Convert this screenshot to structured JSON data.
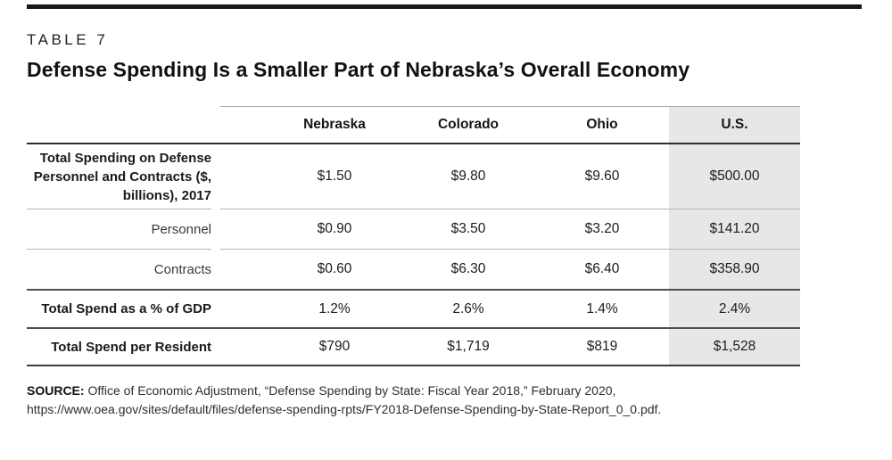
{
  "header": {
    "table_label": "TABLE 7",
    "title": "Defense Spending Is a Smaller Part of Nebraska’s Overall Economy"
  },
  "table": {
    "columns": [
      "Nebraska",
      "Colorado",
      "Ohio",
      "U.S."
    ],
    "rows": [
      {
        "label": "Total Spending on Defense Personnel and Contracts ($, billions), 2017",
        "values": [
          "$1.50",
          "$9.80",
          "$9.60",
          "$500.00"
        ]
      },
      {
        "label": "Personnel",
        "values": [
          "$0.90",
          "$3.50",
          "$3.20",
          "$141.20"
        ]
      },
      {
        "label": "Contracts",
        "values": [
          "$0.60",
          "$6.30",
          "$6.40",
          "$358.90"
        ]
      },
      {
        "label": "Total Spend as a % of GDP",
        "values": [
          "1.2%",
          "2.6%",
          "1.4%",
          "2.4%"
        ]
      },
      {
        "label": "Total Spend per Resident",
        "values": [
          "$790",
          "$1,719",
          "$819",
          "$1,528"
        ]
      }
    ],
    "highlighted_column": "U.S."
  },
  "source": {
    "label": "SOURCE:",
    "text": "Office of Economic Adjustment, “Defense Spending by State: Fiscal Year 2018,” February 2020, https://www.oea.gov/sites/default/files/defense-spending-rpts/FY2018-Defense-Spending-by-State-Report_0_0.pdf."
  },
  "colors": {
    "highlight_column_bg": "#e7e7e7",
    "top_rule": "#181818",
    "header_bottom_rule": "#2e2e2e",
    "section_rule": "#4f4f4f",
    "light_separator": "#b5b5b5",
    "text": "#1a1a1a"
  },
  "chart_data": {
    "type": "table",
    "title": "Defense Spending Is a Smaller Part of Nebraska’s Overall Economy",
    "table_label": "TABLE 7",
    "columns": [
      "Nebraska",
      "Colorado",
      "Ohio",
      "U.S."
    ],
    "rows": [
      {
        "label": "Total Spending on Defense Personnel and Contracts ($, billions), 2017",
        "values": [
          1.5,
          9.8,
          9.6,
          500.0
        ],
        "unit": "$ billions"
      },
      {
        "label": "Personnel",
        "values": [
          0.9,
          3.5,
          3.2,
          141.2
        ],
        "unit": "$ billions"
      },
      {
        "label": "Contracts",
        "values": [
          0.6,
          6.3,
          6.4,
          358.9
        ],
        "unit": "$ billions"
      },
      {
        "label": "Total Spend as a % of GDP",
        "values": [
          1.2,
          2.6,
          1.4,
          2.4
        ],
        "unit": "%"
      },
      {
        "label": "Total Spend per Resident",
        "values": [
          790,
          1719,
          819,
          1528
        ],
        "unit": "$"
      }
    ],
    "highlighted_column": "U.S.",
    "source": "Office of Economic Adjustment, “Defense Spending by State: Fiscal Year 2018,” February 2020, https://www.oea.gov/sites/default/files/defense-spending-rpts/FY2018-Defense-Spending-by-State-Report_0_0.pdf."
  }
}
